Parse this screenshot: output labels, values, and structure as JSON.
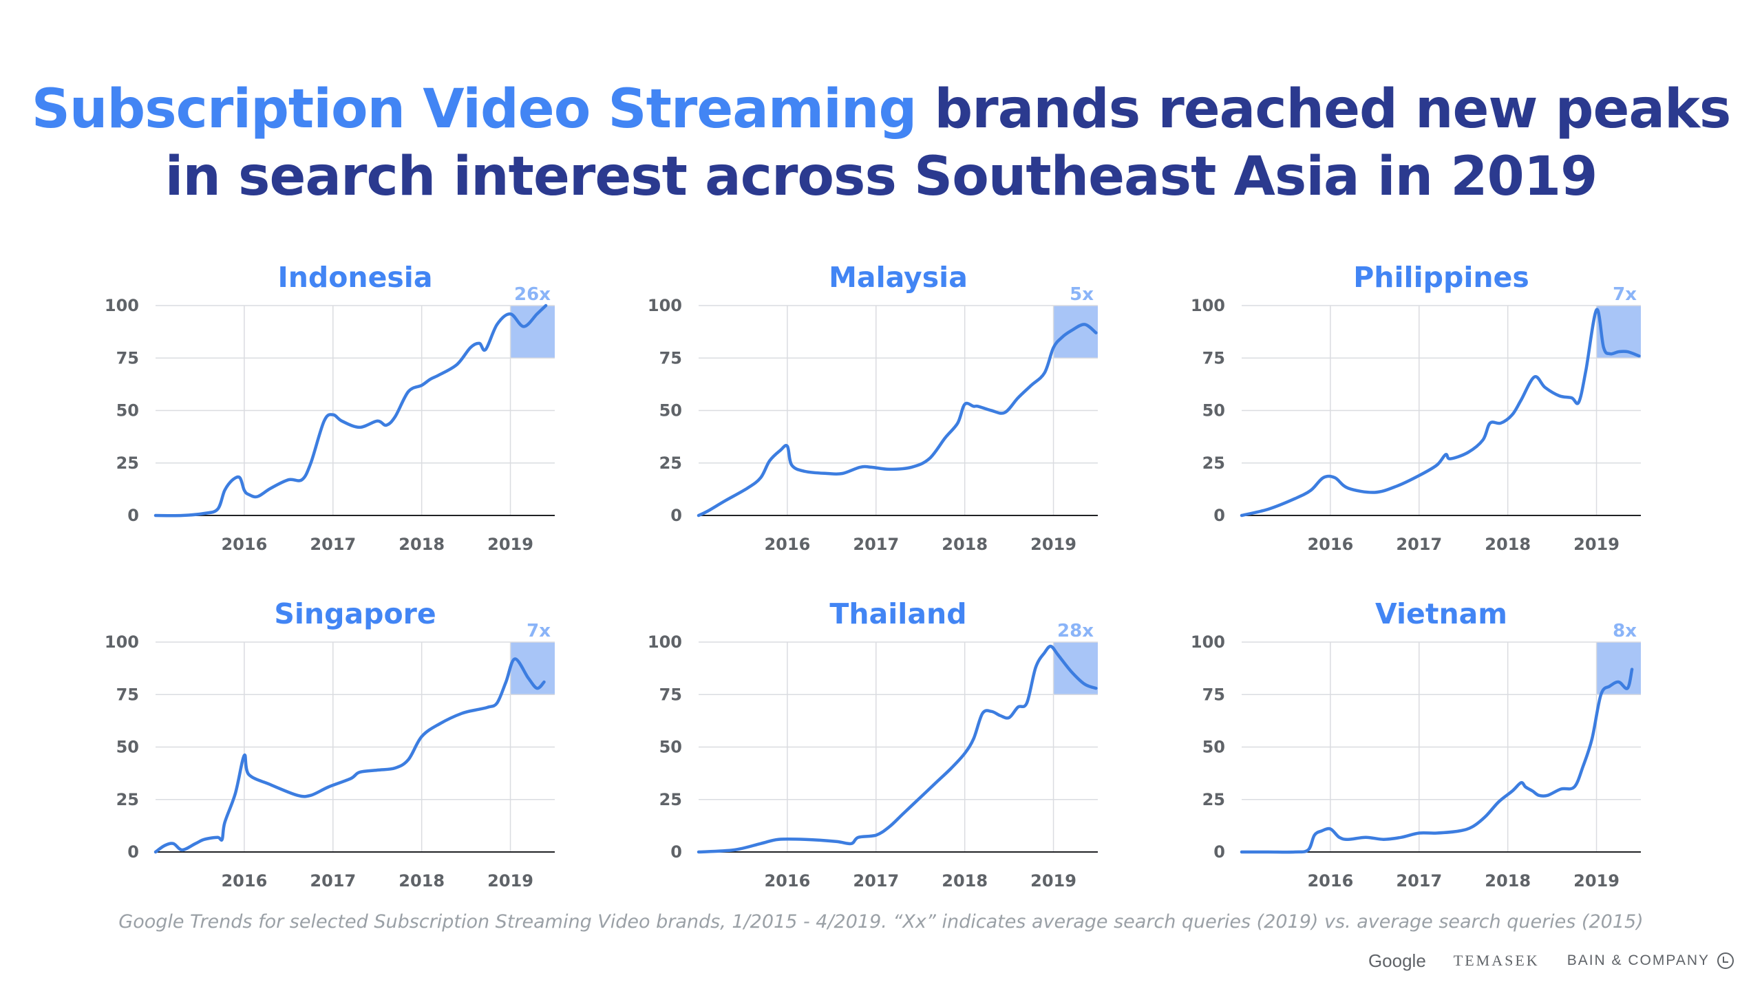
{
  "headline": {
    "highlight": "Subscription Video Streaming",
    "line1_rest": " brands reached new peaks",
    "line2": "in search interest across Southeast Asia in 2019"
  },
  "colors": {
    "headline_dark": "#2b3a8f",
    "accent_blue": "#4285f4",
    "line": "#3c7de0",
    "highlight_box": "#a8c5f7",
    "multiplier": "#8ab4f8",
    "grid": "#dadce0",
    "tick_text": "#5f6368",
    "footnote": "#9aa0a6"
  },
  "chart_data": [
    {
      "type": "line",
      "title": "Indonesia",
      "multiplier": "26x",
      "x_ticks": [
        2016,
        2017,
        2018,
        2019
      ],
      "y_ticks": [
        0,
        25,
        50,
        75,
        100
      ],
      "ylim": [
        0,
        100
      ],
      "xlim": [
        2015.0,
        2019.5
      ],
      "grid": true,
      "highlight_range": {
        "x": [
          2019.0,
          2019.5
        ],
        "y": [
          75,
          100
        ]
      },
      "x": [
        2015.0,
        2015.3,
        2015.55,
        2015.7,
        2015.78,
        2015.87,
        2015.95,
        2016.0,
        2016.05,
        2016.15,
        2016.3,
        2016.5,
        2016.65,
        2016.75,
        2016.9,
        2017.0,
        2017.1,
        2017.3,
        2017.5,
        2017.6,
        2017.7,
        2017.85,
        2018.0,
        2018.1,
        2018.2,
        2018.4,
        2018.55,
        2018.65,
        2018.72,
        2018.85,
        2019.0,
        2019.15,
        2019.3,
        2019.4
      ],
      "y": [
        0,
        0,
        1,
        3,
        12,
        17,
        18,
        12,
        10,
        9,
        13,
        17,
        17,
        25,
        45,
        48,
        45,
        42,
        45,
        43,
        47,
        59,
        62,
        65,
        67,
        72,
        80,
        82,
        79,
        91,
        96,
        90,
        96,
        100
      ]
    },
    {
      "type": "line",
      "title": "Malaysia",
      "multiplier": "5x",
      "x_ticks": [
        2016,
        2017,
        2018,
        2019
      ],
      "y_ticks": [
        0,
        25,
        50,
        75,
        100
      ],
      "ylim": [
        0,
        100
      ],
      "xlim": [
        2015.0,
        2019.5
      ],
      "grid": true,
      "highlight_range": {
        "x": [
          2019.0,
          2019.5
        ],
        "y": [
          75,
          100
        ]
      },
      "x": [
        2015.0,
        2015.1,
        2015.3,
        2015.55,
        2015.7,
        2015.8,
        2015.92,
        2016.0,
        2016.05,
        2016.2,
        2016.45,
        2016.62,
        2016.82,
        2016.95,
        2017.15,
        2017.4,
        2017.6,
        2017.78,
        2017.92,
        2018.0,
        2018.1,
        2018.15,
        2018.3,
        2018.45,
        2018.6,
        2018.75,
        2018.9,
        2019.0,
        2019.1,
        2019.2,
        2019.35,
        2019.48
      ],
      "y": [
        0,
        2,
        7,
        13,
        18,
        26,
        31,
        33,
        24,
        21,
        20,
        20,
        23,
        23,
        22,
        23,
        27,
        37,
        44,
        53,
        52,
        52,
        50,
        49,
        56,
        62,
        68,
        80,
        85,
        88,
        91,
        87
      ]
    },
    {
      "type": "line",
      "title": "Philippines",
      "multiplier": "7x",
      "x_ticks": [
        2016,
        2017,
        2018,
        2019
      ],
      "y_ticks": [
        0,
        25,
        50,
        75,
        100
      ],
      "ylim": [
        0,
        100
      ],
      "xlim": [
        2015.0,
        2019.5
      ],
      "grid": true,
      "highlight_range": {
        "x": [
          2019.0,
          2019.5
        ],
        "y": [
          75,
          100
        ]
      },
      "x": [
        2015.0,
        2015.3,
        2015.6,
        2015.78,
        2015.92,
        2016.05,
        2016.2,
        2016.5,
        2016.75,
        2017.0,
        2017.2,
        2017.3,
        2017.35,
        2017.55,
        2017.72,
        2017.8,
        2017.92,
        2018.05,
        2018.15,
        2018.3,
        2018.42,
        2018.58,
        2018.72,
        2018.8,
        2018.88,
        2019.0,
        2019.08,
        2019.15,
        2019.25,
        2019.35,
        2019.48
      ],
      "y": [
        0,
        3,
        8,
        12,
        18,
        18,
        13,
        11,
        14,
        19,
        24,
        29,
        27,
        30,
        36,
        44,
        44,
        48,
        55,
        66,
        61,
        57,
        56,
        54,
        69,
        98,
        80,
        77,
        78,
        78,
        76
      ]
    },
    {
      "type": "line",
      "title": "Singapore",
      "multiplier": "7x",
      "x_ticks": [
        2016,
        2017,
        2018,
        2019
      ],
      "y_ticks": [
        0,
        25,
        50,
        75,
        100
      ],
      "ylim": [
        0,
        100
      ],
      "xlim": [
        2015.0,
        2019.5
      ],
      "grid": true,
      "highlight_range": {
        "x": [
          2019.0,
          2019.5
        ],
        "y": [
          75,
          100
        ]
      },
      "x": [
        2015.0,
        2015.1,
        2015.2,
        2015.3,
        2015.45,
        2015.55,
        2015.7,
        2015.75,
        2015.78,
        2015.9,
        2016.0,
        2016.05,
        2016.3,
        2016.6,
        2016.75,
        2016.95,
        2017.2,
        2017.3,
        2017.5,
        2017.7,
        2017.85,
        2018.0,
        2018.2,
        2018.45,
        2018.65,
        2018.75,
        2018.85,
        2018.95,
        2019.05,
        2019.2,
        2019.3,
        2019.38
      ],
      "y": [
        0,
        3,
        4,
        1,
        4,
        6,
        7,
        6,
        14,
        28,
        46,
        37,
        32,
        27,
        27,
        31,
        35,
        38,
        39,
        40,
        44,
        55,
        61,
        66,
        68,
        69,
        71,
        81,
        92,
        83,
        78,
        81
      ]
    },
    {
      "type": "line",
      "title": "Thailand",
      "multiplier": "28x",
      "x_ticks": [
        2016,
        2017,
        2018,
        2019
      ],
      "y_ticks": [
        0,
        25,
        50,
        75,
        100
      ],
      "ylim": [
        0,
        100
      ],
      "xlim": [
        2015.0,
        2019.5
      ],
      "grid": true,
      "highlight_range": {
        "x": [
          2019.0,
          2019.5
        ],
        "y": [
          75,
          100
        ]
      },
      "x": [
        2015.0,
        2015.4,
        2015.7,
        2015.9,
        2016.2,
        2016.55,
        2016.72,
        2016.8,
        2017.0,
        2017.15,
        2017.3,
        2017.5,
        2017.7,
        2017.85,
        2018.0,
        2018.1,
        2018.2,
        2018.3,
        2018.4,
        2018.5,
        2018.6,
        2018.7,
        2018.8,
        2018.9,
        2018.97,
        2019.05,
        2019.2,
        2019.35,
        2019.48
      ],
      "y": [
        0,
        1,
        4,
        6,
        6,
        5,
        4,
        7,
        8,
        12,
        18,
        26,
        34,
        40,
        47,
        54,
        66,
        67,
        65,
        64,
        69,
        71,
        88,
        95,
        98,
        94,
        86,
        80,
        78
      ]
    },
    {
      "type": "line",
      "title": "Vietnam",
      "multiplier": "8x",
      "x_ticks": [
        2016,
        2017,
        2018,
        2019
      ],
      "y_ticks": [
        0,
        25,
        50,
        75,
        100
      ],
      "ylim": [
        0,
        100
      ],
      "xlim": [
        2015.0,
        2019.5
      ],
      "grid": true,
      "highlight_range": {
        "x": [
          2019.0,
          2019.5
        ],
        "y": [
          75,
          100
        ]
      },
      "x": [
        2015.0,
        2015.3,
        2015.6,
        2015.75,
        2015.82,
        2015.9,
        2016.0,
        2016.1,
        2016.2,
        2016.4,
        2016.6,
        2016.8,
        2017.0,
        2017.2,
        2017.45,
        2017.6,
        2017.75,
        2017.9,
        2018.05,
        2018.15,
        2018.2,
        2018.28,
        2018.35,
        2018.45,
        2018.6,
        2018.75,
        2018.85,
        2018.95,
        2019.05,
        2019.15,
        2019.25,
        2019.35,
        2019.4
      ],
      "y": [
        0,
        0,
        0,
        1,
        8,
        10,
        11,
        7,
        6,
        7,
        6,
        7,
        9,
        9,
        10,
        12,
        17,
        24,
        29,
        33,
        31,
        29,
        27,
        27,
        30,
        31,
        41,
        54,
        75,
        79,
        81,
        78,
        87
      ]
    }
  ],
  "footnote": "Google Trends for selected Subscription Streaming Video brands, 1/2015 - 4/2019. “Xx” indicates average search queries (2019) vs. average search queries (2015)",
  "brands": {
    "google": "Google",
    "temasek": "TEMASEK",
    "bain": "BAIN & COMPANY"
  }
}
